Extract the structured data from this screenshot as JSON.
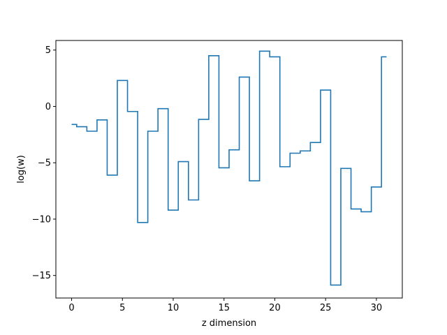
{
  "chart_data": {
    "type": "line",
    "drawstyle": "steps-mid",
    "xlabel": "z dimension",
    "ylabel": "log(w)",
    "xlim": [
      -1.55,
      32.55
    ],
    "ylim": [
      -17.0,
      5.85
    ],
    "xticks": [
      0,
      5,
      10,
      15,
      20,
      25,
      30
    ],
    "yticks": [
      5,
      0,
      -5,
      -10,
      -15
    ],
    "ytick_labels": [
      "5",
      "0",
      "−5",
      "−10",
      "−15"
    ],
    "grid": false,
    "series": [
      {
        "color": "#1f77b4",
        "x": [
          0,
          1,
          2,
          3,
          4,
          5,
          6,
          7,
          8,
          9,
          10,
          11,
          12,
          13,
          14,
          15,
          16,
          17,
          18,
          19,
          20,
          21,
          22,
          23,
          24,
          25,
          26,
          27,
          28,
          29,
          30,
          31
        ],
        "y": [
          -1.6,
          -1.8,
          -2.2,
          -1.2,
          -6.1,
          2.3,
          -0.45,
          -10.3,
          -2.2,
          -0.2,
          -9.2,
          -4.9,
          -8.3,
          -1.15,
          4.5,
          -5.45,
          -3.85,
          2.6,
          -6.6,
          4.9,
          4.4,
          -5.35,
          -4.15,
          -3.95,
          -3.2,
          1.45,
          -15.85,
          -5.5,
          -9.1,
          -9.35,
          -7.15,
          4.4
        ]
      }
    ]
  }
}
